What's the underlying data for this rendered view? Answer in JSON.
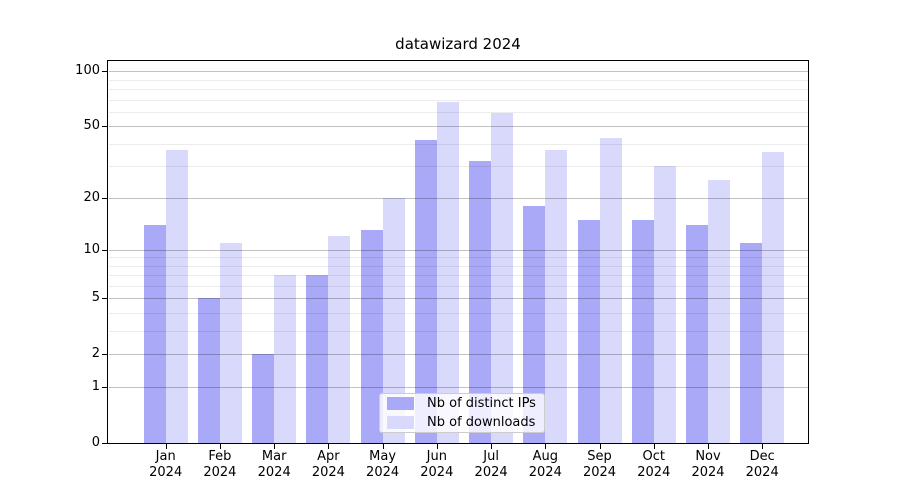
{
  "chart_data": {
    "type": "bar",
    "title": "datawizard 2024",
    "categories": [
      "Jan",
      "Feb",
      "Mar",
      "Apr",
      "May",
      "Jun",
      "Jul",
      "Aug",
      "Sep",
      "Oct",
      "Nov",
      "Dec"
    ],
    "x_year_label": "2024",
    "series": [
      {
        "name": "Nb of distinct IPs",
        "color": "#a9a9f7",
        "values": [
          14,
          5,
          2,
          7,
          13,
          42,
          32,
          18,
          15,
          15,
          14,
          11
        ]
      },
      {
        "name": "Nb of downloads",
        "color": "#d9d9fb",
        "values": [
          37,
          11,
          7,
          12,
          20,
          68,
          59,
          37,
          43,
          30,
          25,
          36
        ]
      }
    ],
    "yscale": "log1p",
    "ylim": [
      0,
      113
    ],
    "y_major_ticks": [
      0,
      1,
      2,
      5,
      10,
      20,
      50,
      100
    ],
    "y_minor_gridlines": [
      3,
      4,
      6,
      7,
      8,
      9,
      30,
      40,
      60,
      70,
      80,
      90
    ],
    "grid": "horizontal",
    "legend_position": "lower center",
    "axis_color": "#000000"
  }
}
